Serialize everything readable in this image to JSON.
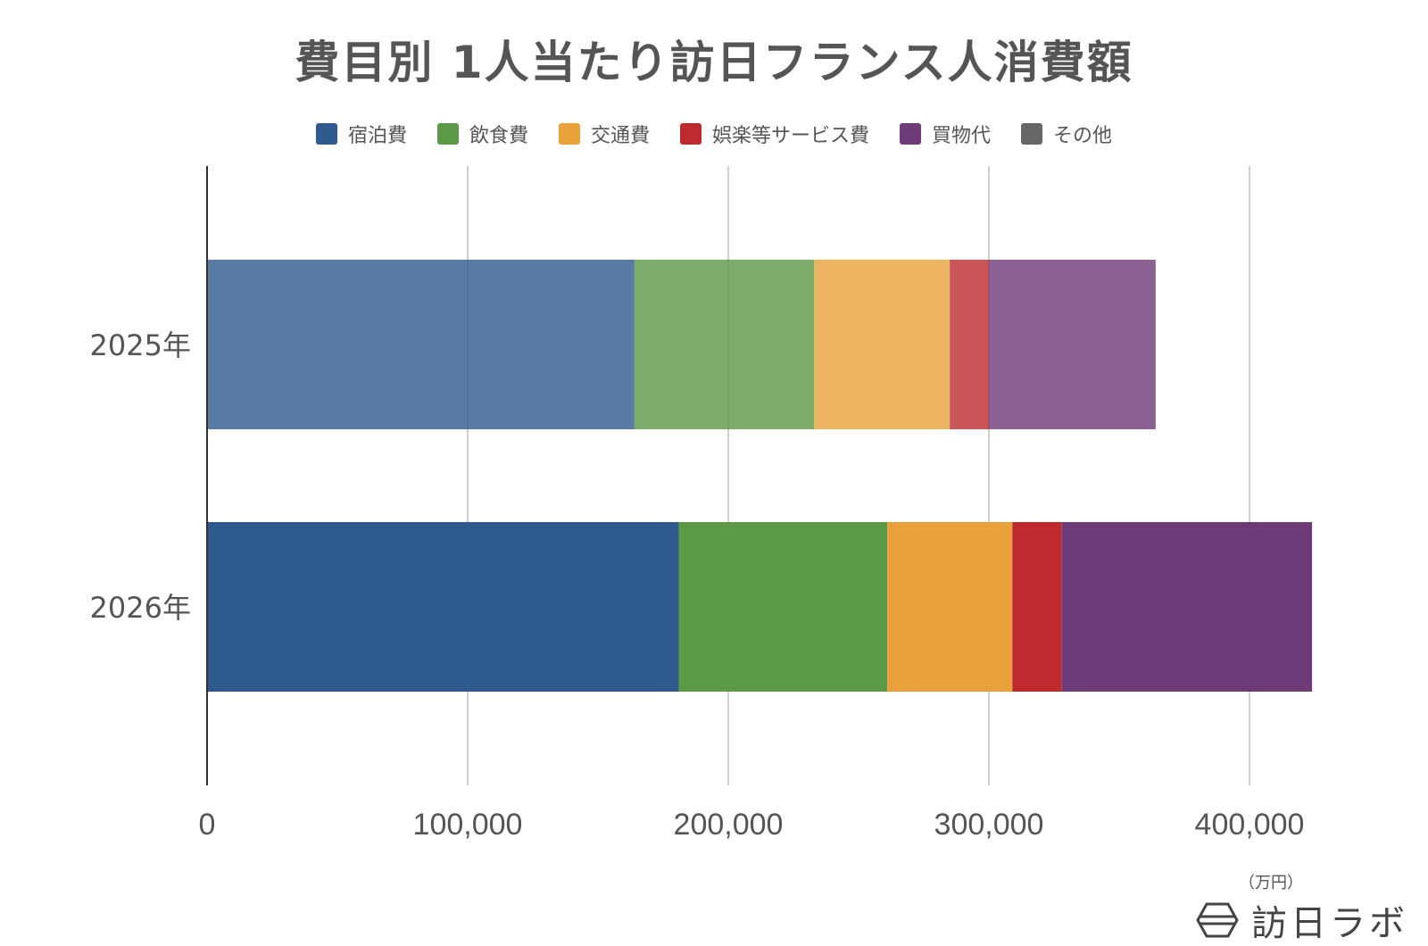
{
  "chart_data": {
    "type": "bar",
    "orientation": "horizontal",
    "stacked": true,
    "title": "費目別 1人当たり訪日フランス人消費額",
    "categories": [
      "2025年",
      "2026年"
    ],
    "series": [
      {
        "name": "宿泊費",
        "color": "#2e5a8d",
        "values": [
          164000,
          181000
        ]
      },
      {
        "name": "飲食費",
        "color": "#5c9946",
        "values": [
          69000,
          80000
        ]
      },
      {
        "name": "交通費",
        "color": "#e8a13b",
        "values": [
          52000,
          48000
        ]
      },
      {
        "name": "娯楽等サービス費",
        "color": "#bd2b2f",
        "values": [
          15000,
          19000
        ]
      },
      {
        "name": "買物代",
        "color": "#6e3b78",
        "values": [
          64000,
          96000
        ]
      },
      {
        "name": "その他",
        "color": "#666666",
        "values": [
          0,
          0
        ]
      }
    ],
    "category_opacity": [
      0.8,
      1
    ],
    "xticks": [
      "0",
      "100,000",
      "200,000",
      "300,000",
      "400,000"
    ],
    "xlim": [
      0,
      420000
    ],
    "xunit": "（万円）",
    "grid": true,
    "legend_position": "top"
  },
  "logo": {
    "text": "訪日ラボ",
    "icon": "hexagon-icon"
  }
}
